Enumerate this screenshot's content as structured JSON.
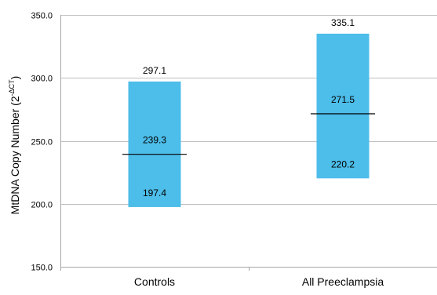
{
  "chart_data": {
    "type": "bar",
    "subtype": "floating-range",
    "title": "",
    "xlabel": "",
    "ylabel": {
      "main": "MtDNA Copy  Number (2",
      "superscript": "-ΔCT",
      "close": ")"
    },
    "ylim": [
      150,
      350
    ],
    "y_ticks": [
      "150.0",
      "200.0",
      "250.0",
      "300.0",
      "350.0"
    ],
    "y_tick_values": [
      150,
      200,
      250,
      300,
      350
    ],
    "grid": true,
    "legend": "none",
    "colors": {
      "bar": "#4dbde9",
      "median_line": "#000000",
      "grid": "#bfbfbf",
      "axis": "#a6a6a6"
    },
    "categories": [
      "Controls",
      "All Preeclampsia"
    ],
    "series": [
      {
        "low": [
          197.4,
          220.2
        ],
        "high": [
          297.1,
          335.1
        ],
        "median": [
          239.3,
          271.5
        ],
        "low_labels": [
          "197.4",
          "220.2"
        ],
        "high_labels": [
          "297.1",
          "335.1"
        ],
        "median_labels": [
          "239.3",
          "271.5"
        ]
      }
    ]
  }
}
